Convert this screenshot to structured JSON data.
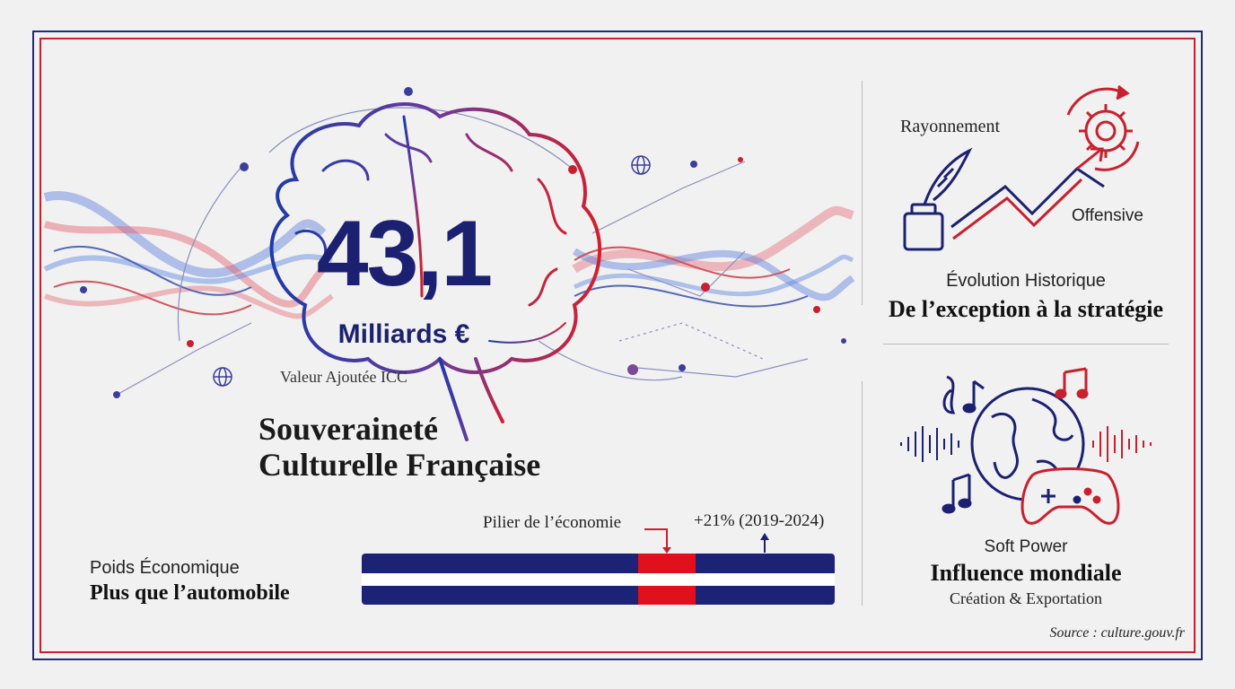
{
  "colors": {
    "blue": "#1b2170",
    "red": "#c8202e",
    "white": "#ffffff",
    "background": "#f1f1f1"
  },
  "hero": {
    "value": "43,1",
    "unit": "Milliards €",
    "caption": "Valeur Ajoutée ICC",
    "headline_line1": "Souveraineté",
    "headline_line2": "Culturelle Française"
  },
  "economic": {
    "label": "Poids Économique",
    "value": "Plus que l’automobile",
    "pillar_label": "Pilier de l’économie",
    "growth_label": "+21% (2019-2024)"
  },
  "evolution": {
    "label_top": "Rayonnement",
    "label_right": "Offensive",
    "title": "Évolution Historique",
    "value": "De l’exception à la stratégie"
  },
  "soft_power": {
    "title": "Soft Power",
    "value": "Influence mondiale",
    "subtitle": "Création & Exportation"
  },
  "source": "Source : culture.gouv.fr",
  "icons": [
    "brain-icon",
    "globe-network-icon",
    "quill-inkwell-icon",
    "rising-arrow-icon",
    "gear-icon",
    "globe-icon",
    "music-note-icon",
    "gamepad-icon",
    "sound-wave-icon"
  ]
}
